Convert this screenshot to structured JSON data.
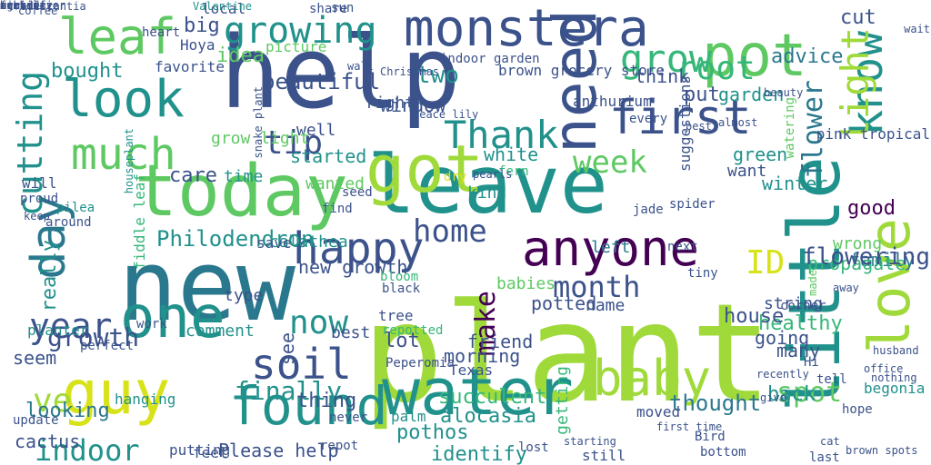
{
  "palette": [
    "#440154",
    "#3b528b",
    "#21918c",
    "#5ec962",
    "#fde725",
    "#9fda3a",
    "#2a788e",
    "#35b779"
  ],
  "words": [
    {
      "text": "plant",
      "c": "#9fda3a"
    },
    {
      "text": "new",
      "c": "#2a788e"
    },
    {
      "text": "leave",
      "c": "#21918c"
    },
    {
      "text": "help",
      "c": "#3b528b"
    },
    {
      "text": "got",
      "c": "#9fda3a"
    },
    {
      "text": "today",
      "c": "#5ec962"
    },
    {
      "text": "water",
      "c": "#21918c"
    },
    {
      "text": "little",
      "c": "#21918c",
      "v": true
    },
    {
      "text": "guy",
      "c": "#d8e219"
    },
    {
      "text": "found",
      "c": "#21918c"
    },
    {
      "text": "one",
      "c": "#21918c"
    },
    {
      "text": "anyone",
      "c": "#440154"
    },
    {
      "text": "monstera",
      "c": "#3b528b"
    },
    {
      "text": "leaf",
      "c": "#5ec962"
    },
    {
      "text": "look",
      "c": "#21918c"
    },
    {
      "text": "pot",
      "c": "#5ec962"
    },
    {
      "text": "need",
      "c": "#3b528b",
      "v": true
    },
    {
      "text": "first",
      "c": "#3b528b"
    },
    {
      "text": "love",
      "c": "#9fda3a",
      "v": true
    },
    {
      "text": "baby",
      "c": "#9fda3a"
    },
    {
      "text": "much",
      "c": "#5ec962"
    },
    {
      "text": "day",
      "c": "#2a788e",
      "v": true
    },
    {
      "text": "happy",
      "c": "#3b528b"
    },
    {
      "text": "soil",
      "c": "#3b528b"
    },
    {
      "text": "growing",
      "c": "#21918c"
    },
    {
      "text": "year",
      "c": "#3b528b"
    },
    {
      "text": "know",
      "c": "#21918c",
      "v": true
    },
    {
      "text": "Thank",
      "c": "#21918c"
    },
    {
      "text": "now",
      "c": "#21918c"
    },
    {
      "text": "tip",
      "c": "#3b528b"
    },
    {
      "text": "week",
      "c": "#5ec962"
    },
    {
      "text": "home",
      "c": "#3b528b"
    },
    {
      "text": "month",
      "c": "#3b528b"
    },
    {
      "text": "grow",
      "c": "#35b779"
    },
    {
      "text": "cutting",
      "c": "#21918c",
      "v": true
    },
    {
      "text": "indoor",
      "c": "#21918c"
    },
    {
      "text": "ve",
      "c": "#9fda3a"
    },
    {
      "text": "root",
      "c": "#35b779"
    },
    {
      "text": "light",
      "c": "#9fda3a",
      "v": true
    },
    {
      "text": "ID",
      "c": "#d8e219"
    },
    {
      "text": "Philodendron",
      "c": "#21918c"
    },
    {
      "text": "flower",
      "c": "#2a788e",
      "v": true
    },
    {
      "text": "growth",
      "c": "#3b528b"
    },
    {
      "text": "finally",
      "c": "#21918c"
    },
    {
      "text": "spot",
      "c": "#5ec962"
    },
    {
      "text": "make",
      "c": "#440154",
      "v": true
    },
    {
      "text": "advice",
      "c": "#2a788e"
    },
    {
      "text": "bought",
      "c": "#21918c"
    },
    {
      "text": "beautiful",
      "c": "#3b528b"
    },
    {
      "text": "care",
      "c": "#3b528b"
    },
    {
      "text": "started",
      "c": "#21918c"
    },
    {
      "text": "green",
      "c": "#21918c"
    },
    {
      "text": "good",
      "c": "#440154"
    },
    {
      "text": "babies",
      "c": "#5ec962"
    },
    {
      "text": "thought",
      "c": "#2a788e"
    },
    {
      "text": "succulent",
      "c": "#35b779"
    },
    {
      "text": "alocasia",
      "c": "#21918c"
    },
    {
      "text": "pothos",
      "c": "#21918c"
    },
    {
      "text": "Please help",
      "c": "#3b528b"
    },
    {
      "text": "looking",
      "c": "#2a788e"
    },
    {
      "text": "cactus",
      "c": "#3b528b"
    },
    {
      "text": "thing",
      "c": "#3b528b"
    },
    {
      "text": "lot",
      "c": "#3b528b"
    },
    {
      "text": "identify",
      "c": "#21918c"
    },
    {
      "text": "healthy",
      "c": "#35b779"
    },
    {
      "text": "back",
      "c": "#21918c"
    },
    {
      "text": "house",
      "c": "#3b528b"
    },
    {
      "text": "going",
      "c": "#3b528b"
    },
    {
      "text": "wrong",
      "c": "#5ec962"
    },
    {
      "text": "family",
      "c": "#2a788e"
    },
    {
      "text": "idea",
      "c": "#5ec962"
    },
    {
      "text": "think",
      "c": "#3b528b"
    },
    {
      "text": "two",
      "c": "#21918c"
    },
    {
      "text": "window",
      "c": "#3b528b"
    },
    {
      "text": "garden",
      "c": "#21918c"
    },
    {
      "text": "big",
      "c": "#3b528b"
    },
    {
      "text": "cut",
      "c": "#3b528b"
    },
    {
      "text": "really",
      "c": "#21918c",
      "v": true
    },
    {
      "text": "put",
      "c": "#3b528b"
    },
    {
      "text": "white",
      "c": "#21918c"
    },
    {
      "text": "time",
      "c": "#21918c"
    },
    {
      "text": "winter",
      "c": "#21918c"
    },
    {
      "text": "will",
      "c": "#3b528b"
    },
    {
      "text": "want",
      "c": "#3b528b"
    },
    {
      "text": "well",
      "c": "#3b528b"
    },
    {
      "text": "kind",
      "c": "#21918c"
    },
    {
      "text": "right",
      "c": "#3b528b"
    },
    {
      "text": "wanted",
      "c": "#5ec962"
    },
    {
      "text": "calathea",
      "c": "#21918c"
    },
    {
      "text": "save",
      "c": "#3b528b"
    },
    {
      "text": "left",
      "c": "#2a788e"
    },
    {
      "text": "propagate",
      "c": "#35b779"
    },
    {
      "text": "type",
      "c": "#3b528b"
    },
    {
      "text": "morning",
      "c": "#3b528b"
    },
    {
      "text": "name",
      "c": "#3b528b"
    },
    {
      "text": "string",
      "c": "#3b528b"
    },
    {
      "text": "corner",
      "c": "#3b528b"
    },
    {
      "text": "best",
      "c": "#3b528b"
    },
    {
      "text": "seem",
      "c": "#3b528b"
    },
    {
      "text": "many",
      "c": "#3b528b"
    },
    {
      "text": "new growth",
      "c": "#3b528b"
    },
    {
      "text": "comment",
      "c": "#21918c"
    },
    {
      "text": "see",
      "c": "#3b528b",
      "v": true
    },
    {
      "text": "potted",
      "c": "#3b528b"
    },
    {
      "text": "friend",
      "c": "#3b528b"
    },
    {
      "text": "getting",
      "c": "#35b779",
      "v": true
    },
    {
      "text": "houseplant",
      "c": "#21918c",
      "v": true
    },
    {
      "text": "planter",
      "c": "#21918c"
    },
    {
      "text": "pink tropical",
      "c": "#3b528b"
    },
    {
      "text": "grow light",
      "c": "#5ec962"
    },
    {
      "text": "Hoya",
      "c": "#3b528b"
    },
    {
      "text": "picture",
      "c": "#5ec962"
    },
    {
      "text": "favorite",
      "c": "#3b528b"
    },
    {
      "text": "hanging",
      "c": "#21918c"
    },
    {
      "text": "putting",
      "c": "#3b528b"
    },
    {
      "text": "feel",
      "c": "#3b528b"
    },
    {
      "text": "still",
      "c": "#3b528b"
    },
    {
      "text": "hope",
      "c": "#3b528b"
    },
    {
      "text": "tell",
      "c": "#3b528b"
    },
    {
      "text": "begonia",
      "c": "#21918c"
    },
    {
      "text": "moved",
      "c": "#3b528b"
    },
    {
      "text": "Texas",
      "c": "#3b528b"
    },
    {
      "text": "palm",
      "c": "#21918c"
    },
    {
      "text": "bloom",
      "c": "#35b779"
    },
    {
      "text": "tree",
      "c": "#3b528b"
    },
    {
      "text": "local",
      "c": "#3b528b"
    },
    {
      "text": "heart",
      "c": "#3b528b"
    },
    {
      "text": "sun",
      "c": "#3b528b"
    },
    {
      "text": "share",
      "c": "#3b528b"
    },
    {
      "text": "Valentine",
      "c": "#21918c"
    },
    {
      "text": "tradescantia",
      "c": "#3b528b"
    },
    {
      "text": "indoor garden",
      "c": "#3b528b"
    },
    {
      "text": "brown grocery store",
      "c": "#3b528b"
    },
    {
      "text": "anthurium",
      "c": "#3b528b"
    },
    {
      "text": "every",
      "c": "#3b528b"
    },
    {
      "text": "suggestions",
      "c": "#3b528b",
      "v": true
    },
    {
      "text": "watering",
      "c": "#5ec962",
      "v": true
    },
    {
      "text": "beauty",
      "c": "#3b528b"
    },
    {
      "text": "fiddle leaf",
      "c": "#35b779",
      "v": true
    },
    {
      "text": "proud",
      "c": "#3b528b"
    },
    {
      "text": "keep",
      "c": "#3b528b"
    },
    {
      "text": "around",
      "c": "#3b528b"
    },
    {
      "text": "seed",
      "c": "#3b528b"
    },
    {
      "text": "find",
      "c": "#3b528b"
    },
    {
      "text": "dry",
      "c": "#d8e219"
    },
    {
      "text": "pilea",
      "c": "#21918c"
    },
    {
      "text": "spider",
      "c": "#3b528b"
    },
    {
      "text": "jade",
      "c": "#3b528b"
    },
    {
      "text": "fern",
      "c": "#35b779"
    },
    {
      "text": "pearls",
      "c": "#3b528b"
    },
    {
      "text": "next",
      "c": "#3b528b"
    },
    {
      "text": "tiny",
      "c": "#3b528b"
    },
    {
      "text": "last",
      "c": "#3b528b"
    },
    {
      "text": "update",
      "c": "#3b528b"
    },
    {
      "text": "repotted",
      "c": "#35b779"
    },
    {
      "text": "black",
      "c": "#3b528b"
    },
    {
      "text": "Peperomia",
      "c": "#3b528b"
    },
    {
      "text": "never",
      "c": "#3b528b"
    },
    {
      "text": "repot",
      "c": "#3b528b"
    },
    {
      "text": "bottom",
      "c": "#3b528b"
    },
    {
      "text": "Bird",
      "c": "#3b528b"
    },
    {
      "text": "give",
      "c": "#3b528b"
    },
    {
      "text": "recently",
      "c": "#3b528b"
    },
    {
      "text": "Hi",
      "c": "#3b528b"
    },
    {
      "text": "perfect",
      "c": "#3b528b"
    },
    {
      "text": "work",
      "c": "#3b528b"
    },
    {
      "text": "lost",
      "c": "#3b528b"
    },
    {
      "text": "flowering",
      "c": "#3b528b"
    },
    {
      "text": "wait",
      "c": "#3b528b"
    },
    {
      "text": "cat",
      "c": "#3b528b"
    },
    {
      "text": "away",
      "c": "#3b528b"
    },
    {
      "text": "made",
      "c": "#5ec962",
      "v": true
    },
    {
      "text": "snake plant",
      "c": "#3b528b",
      "v": true
    },
    {
      "text": "coffee",
      "c": "#3b528b"
    },
    {
      "text": "wall",
      "c": "#3b528b"
    },
    {
      "text": "Christmas",
      "c": "#3b528b"
    },
    {
      "text": "peace lily",
      "c": "#3b528b"
    },
    {
      "text": "starting",
      "c": "#3b528b"
    },
    {
      "text": "pest",
      "c": "#3b528b"
    },
    {
      "text": "almost",
      "c": "#3b528b"
    },
    {
      "text": "first time",
      "c": "#3b528b"
    },
    {
      "text": "brown spots",
      "c": "#3b528b"
    },
    {
      "text": "husband",
      "c": "#3b528b"
    },
    {
      "text": "office",
      "c": "#3b528b"
    },
    {
      "text": "nothing",
      "c": "#3b528b"
    },
    {
      "text": "ago",
      "c": "#3b528b"
    },
    {
      "text": "humidifier",
      "c": "#3b528b"
    },
    {
      "text": "rubber",
      "c": "#3b528b"
    },
    {
      "text": "mini",
      "c": "#3b528b"
    },
    {
      "text": "orchid",
      "c": "#3b528b"
    },
    {
      "text": "fertilizer",
      "c": "#3b528b"
    },
    {
      "text": "humidity",
      "c": "#3b528b"
    },
    {
      "text": "survive",
      "c": "#3b528b"
    }
  ]
}
